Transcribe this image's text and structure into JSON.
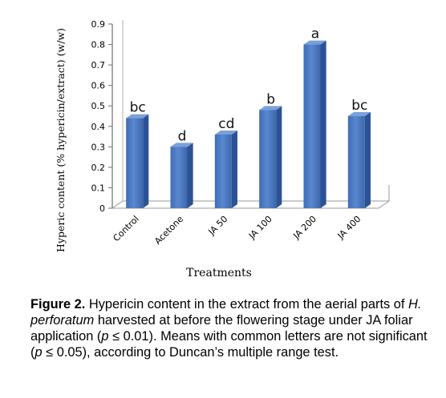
{
  "chart_data": {
    "type": "bar",
    "title": "",
    "xlabel": "Treatments",
    "ylabel": "Hyperic content (% hypericin/extract) (w/w)",
    "ylim": [
      0,
      0.9
    ],
    "yticks": [
      "0",
      "0.1",
      "0.2",
      "0.3",
      "0.4",
      "0.5",
      "0.6",
      "0.7",
      "0.8",
      "0.9"
    ],
    "categories": [
      "Control",
      "Acetone",
      "JA 50",
      "JA 100",
      "JA 200",
      "JA 400"
    ],
    "values": [
      0.44,
      0.3,
      0.36,
      0.48,
      0.8,
      0.45
    ],
    "significance_letters": [
      "bc",
      "d",
      "cd",
      "b",
      "a",
      "bc"
    ],
    "bar_color": "#4a78c2",
    "grid": false,
    "style": "3d"
  },
  "caption": {
    "label": "Figure 2.",
    "text_1": " Hypericin content in the extract from the aerial parts of ",
    "species": "H. perforatum",
    "text_2": " harvested at before the flowering stage under JA foliar application (",
    "p1": "p",
    "text_3": " ≤ 0.01). Means with common letters are not significant (",
    "p2": "p",
    "text_4": " ≤ 0.05), according to Duncan’s multiple range test."
  }
}
